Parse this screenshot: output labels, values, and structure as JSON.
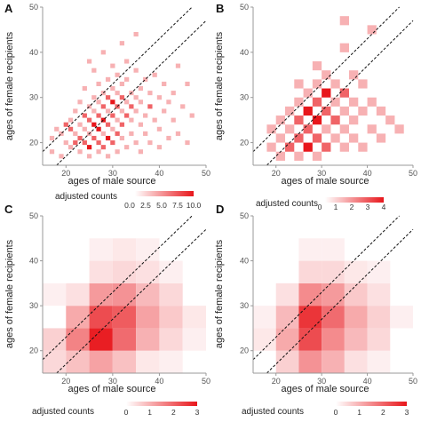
{
  "chart_data": [
    {
      "panel": "A",
      "type": "heatmap",
      "xlabel": "ages of male source",
      "ylabel": "ages of female recipients",
      "xlim": [
        15,
        50
      ],
      "ylim": [
        15,
        50
      ],
      "xticks": [
        20,
        30,
        40,
        50
      ],
      "yticks": [
        20,
        30,
        40,
        50
      ],
      "bin": 1,
      "color_max": 3,
      "reference_lines": [
        -3,
        3
      ],
      "cells": [
        [
          17,
          18,
          1
        ],
        [
          17,
          21,
          1
        ],
        [
          18,
          23,
          1
        ],
        [
          19,
          17,
          1
        ],
        [
          19,
          22,
          1
        ],
        [
          20,
          20,
          1
        ],
        [
          20,
          24,
          2
        ],
        [
          21,
          19,
          1
        ],
        [
          21,
          23,
          2
        ],
        [
          21,
          25,
          1
        ],
        [
          22,
          20,
          2
        ],
        [
          22,
          22,
          1
        ],
        [
          22,
          27,
          1
        ],
        [
          23,
          18,
          1
        ],
        [
          23,
          21,
          2
        ],
        [
          23,
          24,
          1
        ],
        [
          23,
          29,
          1
        ],
        [
          24,
          20,
          2
        ],
        [
          24,
          23,
          1
        ],
        [
          24,
          26,
          2
        ],
        [
          24,
          32,
          1
        ],
        [
          25,
          17,
          1
        ],
        [
          25,
          19,
          3
        ],
        [
          25,
          22,
          1
        ],
        [
          25,
          25,
          2
        ],
        [
          25,
          28,
          1
        ],
        [
          25,
          38,
          1
        ],
        [
          26,
          21,
          2
        ],
        [
          26,
          24,
          3
        ],
        [
          26,
          27,
          1
        ],
        [
          26,
          30,
          1
        ],
        [
          26,
          36,
          1
        ],
        [
          27,
          18,
          1
        ],
        [
          27,
          20,
          2
        ],
        [
          27,
          23,
          3
        ],
        [
          27,
          26,
          2
        ],
        [
          27,
          29,
          1
        ],
        [
          27,
          33,
          1
        ],
        [
          28,
          19,
          2
        ],
        [
          28,
          22,
          1
        ],
        [
          28,
          25,
          3
        ],
        [
          28,
          28,
          2
        ],
        [
          28,
          31,
          1
        ],
        [
          28,
          40,
          1
        ],
        [
          29,
          17,
          1
        ],
        [
          29,
          21,
          3
        ],
        [
          29,
          24,
          2
        ],
        [
          29,
          27,
          1
        ],
        [
          29,
          30,
          2
        ],
        [
          29,
          34,
          1
        ],
        [
          30,
          20,
          2
        ],
        [
          30,
          23,
          1
        ],
        [
          30,
          26,
          2
        ],
        [
          30,
          29,
          3
        ],
        [
          30,
          32,
          1
        ],
        [
          30,
          37,
          1
        ],
        [
          31,
          18,
          1
        ],
        [
          31,
          22,
          2
        ],
        [
          31,
          25,
          1
        ],
        [
          31,
          28,
          2
        ],
        [
          31,
          31,
          1
        ],
        [
          31,
          35,
          1
        ],
        [
          32,
          21,
          1
        ],
        [
          32,
          24,
          2
        ],
        [
          32,
          27,
          1
        ],
        [
          32,
          30,
          2
        ],
        [
          32,
          33,
          1
        ],
        [
          32,
          42,
          1
        ],
        [
          33,
          19,
          1
        ],
        [
          33,
          26,
          2
        ],
        [
          33,
          29,
          1
        ],
        [
          33,
          34,
          1
        ],
        [
          33,
          38,
          1
        ],
        [
          34,
          22,
          1
        ],
        [
          34,
          25,
          1
        ],
        [
          34,
          28,
          2
        ],
        [
          34,
          31,
          1
        ],
        [
          35,
          20,
          1
        ],
        [
          35,
          27,
          1
        ],
        [
          35,
          30,
          1
        ],
        [
          35,
          36,
          1
        ],
        [
          35,
          44,
          1
        ],
        [
          36,
          18,
          1
        ],
        [
          36,
          24,
          1
        ],
        [
          36,
          29,
          1
        ],
        [
          36,
          32,
          1
        ],
        [
          37,
          22,
          1
        ],
        [
          37,
          26,
          1
        ],
        [
          37,
          34,
          1
        ],
        [
          38,
          20,
          1
        ],
        [
          38,
          28,
          2
        ],
        [
          38,
          31,
          1
        ],
        [
          39,
          25,
          1
        ],
        [
          39,
          35,
          1
        ],
        [
          40,
          19,
          1
        ],
        [
          40,
          23,
          1
        ],
        [
          40,
          30,
          1
        ],
        [
          41,
          27,
          1
        ],
        [
          41,
          33,
          1
        ],
        [
          42,
          21,
          1
        ],
        [
          42,
          29,
          1
        ],
        [
          43,
          25,
          1
        ],
        [
          43,
          31,
          1
        ],
        [
          44,
          22,
          1
        ],
        [
          44,
          37,
          1
        ],
        [
          45,
          28,
          1
        ],
        [
          46,
          20,
          1
        ],
        [
          46,
          33,
          1
        ],
        [
          47,
          26,
          1
        ]
      ]
    },
    {
      "panel": "B",
      "type": "heatmap",
      "xlabel": "ages of male source",
      "ylabel": "ages of female recipients",
      "xlim": [
        15,
        50
      ],
      "ylim": [
        15,
        50
      ],
      "xticks": [
        20,
        30,
        40,
        50
      ],
      "yticks": [
        20,
        30,
        40,
        50
      ],
      "bin": 2,
      "color_max": 3,
      "reference_lines": [
        -3,
        3
      ],
      "cells": [
        [
          19,
          19,
          1
        ],
        [
          19,
          23,
          1
        ],
        [
          21,
          17,
          1
        ],
        [
          21,
          21,
          1
        ],
        [
          21,
          25,
          1
        ],
        [
          23,
          19,
          2
        ],
        [
          23,
          23,
          1
        ],
        [
          23,
          27,
          1
        ],
        [
          25,
          17,
          1
        ],
        [
          25,
          21,
          2
        ],
        [
          25,
          25,
          2
        ],
        [
          25,
          29,
          1
        ],
        [
          25,
          33,
          1
        ],
        [
          27,
          19,
          3
        ],
        [
          27,
          23,
          2
        ],
        [
          27,
          27,
          3
        ],
        [
          27,
          31,
          1
        ],
        [
          29,
          17,
          1
        ],
        [
          29,
          21,
          2
        ],
        [
          29,
          25,
          3
        ],
        [
          29,
          29,
          2
        ],
        [
          29,
          33,
          1
        ],
        [
          29,
          37,
          1
        ],
        [
          31,
          19,
          2
        ],
        [
          31,
          23,
          1
        ],
        [
          31,
          27,
          2
        ],
        [
          31,
          31,
          3
        ],
        [
          31,
          35,
          1
        ],
        [
          33,
          21,
          1
        ],
        [
          33,
          25,
          2
        ],
        [
          33,
          29,
          1
        ],
        [
          33,
          33,
          1
        ],
        [
          35,
          19,
          1
        ],
        [
          35,
          23,
          1
        ],
        [
          35,
          27,
          1
        ],
        [
          35,
          31,
          2
        ],
        [
          35,
          41,
          1
        ],
        [
          37,
          21,
          1
        ],
        [
          37,
          25,
          1
        ],
        [
          37,
          29,
          1
        ],
        [
          37,
          35,
          1
        ],
        [
          39,
          19,
          1
        ],
        [
          39,
          27,
          1
        ],
        [
          39,
          33,
          1
        ],
        [
          41,
          23,
          1
        ],
        [
          41,
          29,
          1
        ],
        [
          43,
          21,
          1
        ],
        [
          43,
          27,
          1
        ],
        [
          45,
          25,
          1
        ],
        [
          47,
          23,
          1
        ],
        [
          35,
          47,
          1
        ],
        [
          41,
          45,
          1
        ]
      ]
    },
    {
      "panel": "C",
      "type": "heatmap",
      "xlabel": "ages of male source",
      "ylabel": "ages of female recipients",
      "xlim": [
        15,
        50
      ],
      "ylim": [
        15,
        50
      ],
      "xticks": [
        20,
        30,
        40,
        50
      ],
      "yticks": [
        20,
        30,
        40,
        50
      ],
      "bin": 5,
      "color_max": 3,
      "reference_lines": [
        -3,
        3
      ],
      "colorbar_title": "adjusted counts",
      "colorbar_ticks": [
        "0",
        "1",
        "2",
        "3"
      ],
      "cells": [
        [
          17.5,
          17.5,
          0.5
        ],
        [
          17.5,
          22.5,
          0.6
        ],
        [
          17.5,
          32.5,
          0.2
        ],
        [
          22.5,
          17.5,
          0.8
        ],
        [
          22.5,
          22.5,
          1.6
        ],
        [
          22.5,
          27.5,
          1.1
        ],
        [
          22.5,
          32.5,
          0.4
        ],
        [
          27.5,
          17.5,
          1.2
        ],
        [
          27.5,
          22.5,
          2.9
        ],
        [
          27.5,
          27.5,
          2.3
        ],
        [
          27.5,
          32.5,
          1.3
        ],
        [
          27.5,
          37.5,
          0.4
        ],
        [
          27.5,
          42.5,
          0.2
        ],
        [
          32.5,
          17.5,
          0.8
        ],
        [
          32.5,
          22.5,
          1.9
        ],
        [
          32.5,
          27.5,
          2.1
        ],
        [
          32.5,
          32.5,
          1.4
        ],
        [
          32.5,
          37.5,
          0.5
        ],
        [
          32.5,
          42.5,
          0.3
        ],
        [
          37.5,
          17.5,
          0.3
        ],
        [
          37.5,
          22.5,
          1.0
        ],
        [
          37.5,
          27.5,
          1.2
        ],
        [
          37.5,
          32.5,
          0.9
        ],
        [
          37.5,
          37.5,
          0.4
        ],
        [
          37.5,
          42.5,
          0.2
        ],
        [
          42.5,
          17.5,
          0.2
        ],
        [
          42.5,
          22.5,
          0.5
        ],
        [
          42.5,
          27.5,
          0.7
        ],
        [
          42.5,
          32.5,
          0.5
        ],
        [
          42.5,
          37.5,
          0.2
        ],
        [
          47.5,
          22.5,
          0.2
        ],
        [
          47.5,
          27.5,
          0.3
        ]
      ]
    },
    {
      "panel": "D",
      "type": "heatmap",
      "xlabel": "ages of male source",
      "ylabel": "ages of female recipients",
      "xlim": [
        15,
        50
      ],
      "ylim": [
        15,
        50
      ],
      "xticks": [
        20,
        30,
        40,
        50
      ],
      "yticks": [
        20,
        30,
        40,
        50
      ],
      "bin": 5,
      "color_max": 3,
      "reference_lines": [
        -3,
        3
      ],
      "colorbar_title": "adjusted counts",
      "colorbar_ticks": [
        "0",
        "1",
        "2",
        "3"
      ],
      "cells": [
        [
          17.5,
          22.5,
          0.3
        ],
        [
          17.5,
          27.5,
          0.2
        ],
        [
          22.5,
          17.5,
          0.6
        ],
        [
          22.5,
          22.5,
          1.1
        ],
        [
          22.5,
          27.5,
          0.9
        ],
        [
          22.5,
          32.5,
          0.4
        ],
        [
          27.5,
          17.5,
          1.4
        ],
        [
          27.5,
          22.5,
          2.3
        ],
        [
          27.5,
          27.5,
          2.6
        ],
        [
          27.5,
          32.5,
          1.5
        ],
        [
          27.5,
          37.5,
          0.5
        ],
        [
          27.5,
          42.5,
          0.2
        ],
        [
          32.5,
          17.5,
          1.0
        ],
        [
          32.5,
          22.5,
          1.5
        ],
        [
          32.5,
          27.5,
          1.9
        ],
        [
          32.5,
          32.5,
          1.3
        ],
        [
          32.5,
          37.5,
          0.5
        ],
        [
          32.5,
          42.5,
          0.2
        ],
        [
          37.5,
          17.5,
          0.4
        ],
        [
          37.5,
          22.5,
          0.9
        ],
        [
          37.5,
          27.5,
          1.1
        ],
        [
          37.5,
          32.5,
          0.7
        ],
        [
          37.5,
          37.5,
          0.3
        ],
        [
          42.5,
          17.5,
          0.2
        ],
        [
          42.5,
          22.5,
          0.5
        ],
        [
          42.5,
          27.5,
          0.6
        ],
        [
          42.5,
          32.5,
          0.4
        ],
        [
          42.5,
          37.5,
          0.2
        ],
        [
          47.5,
          27.5,
          0.2
        ]
      ]
    }
  ],
  "colorbars_top": [
    {
      "panel": "C",
      "title": "adjusted counts",
      "ticks": [
        "0.0",
        "2.5",
        "5.0",
        "7.5",
        "10.0"
      ]
    },
    {
      "panel": "D",
      "title": "adjusted counts",
      "ticks": [
        "0",
        "1",
        "2",
        "3",
        "4"
      ]
    }
  ],
  "colors": {
    "low": "#ffffff",
    "high": "#e8161b",
    "axis": "#999999"
  }
}
